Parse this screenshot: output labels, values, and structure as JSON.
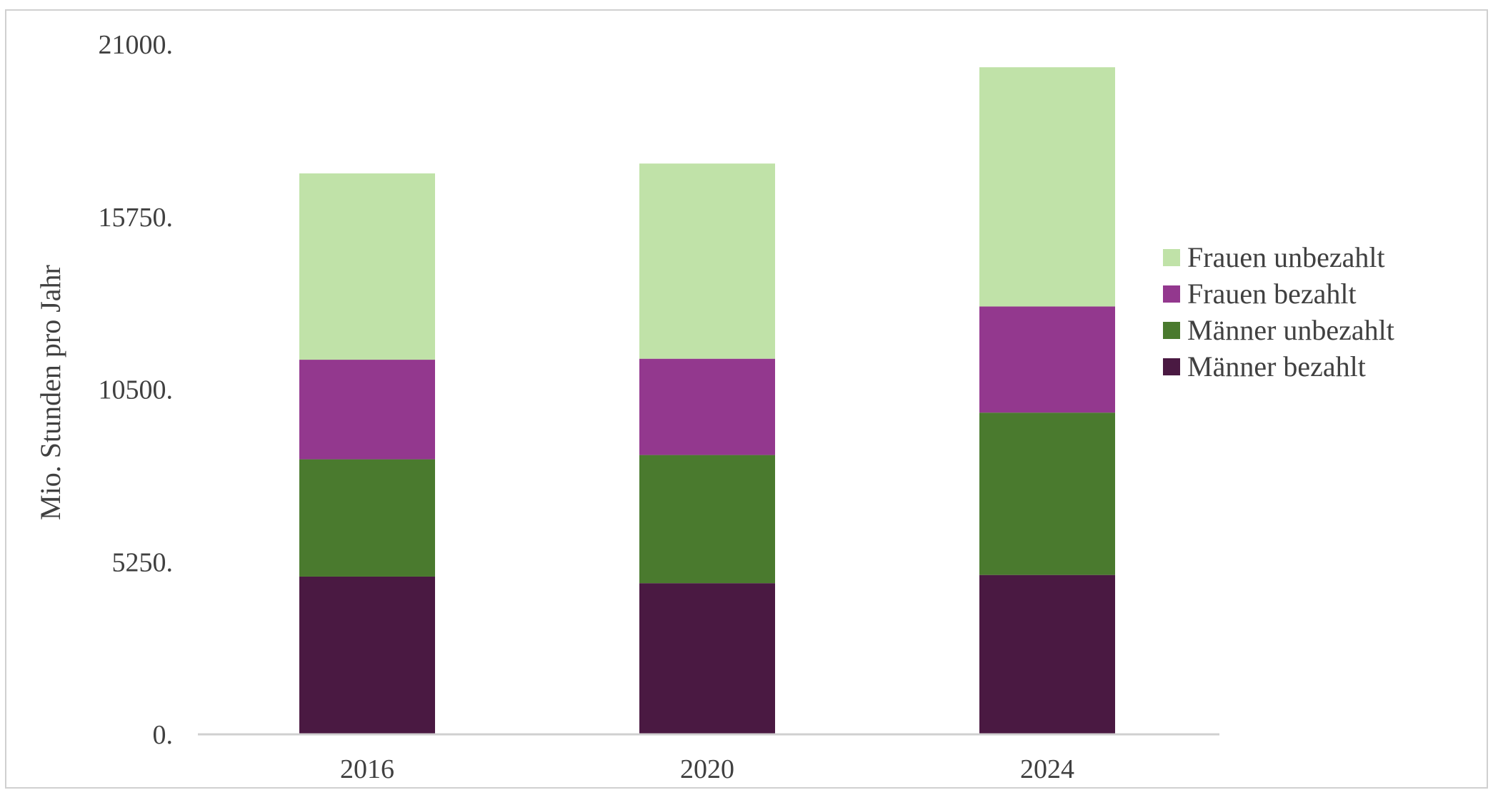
{
  "chart_data": {
    "type": "bar",
    "stacked": true,
    "categories": [
      "2016",
      "2020",
      "2024"
    ],
    "series": [
      {
        "name": "Männer bezahlt",
        "values": [
          4800,
          4600,
          4850
        ],
        "color": "#4a1942"
      },
      {
        "name": "Männer unbezahlt",
        "values": [
          3570,
          3900,
          4940
        ],
        "color": "#4a7a2e"
      },
      {
        "name": "Frauen bezahlt",
        "values": [
          3030,
          2930,
          3230
        ],
        "color": "#93388e"
      },
      {
        "name": "Frauen unbezahlt",
        "values": [
          5670,
          5940,
          7280
        ],
        "color": "#c0e2a8"
      }
    ],
    "ylabel": "Mio. Stunden pro Jahr",
    "xlabel": "",
    "title": "",
    "ylim": [
      0,
      21000
    ],
    "yticks": [
      0,
      5250,
      10500,
      15750,
      21000
    ],
    "ytick_labels": [
      "0.",
      "5250.",
      "10500.",
      "15750.",
      "21000."
    ],
    "grid": false,
    "legend": {
      "placement": "right",
      "order": [
        "Frauen unbezahlt",
        "Frauen bezahlt",
        "Männer unbezahlt",
        "Männer bezahlt"
      ]
    },
    "axis_color": "#d0d0d0",
    "text_color": "#404040"
  }
}
